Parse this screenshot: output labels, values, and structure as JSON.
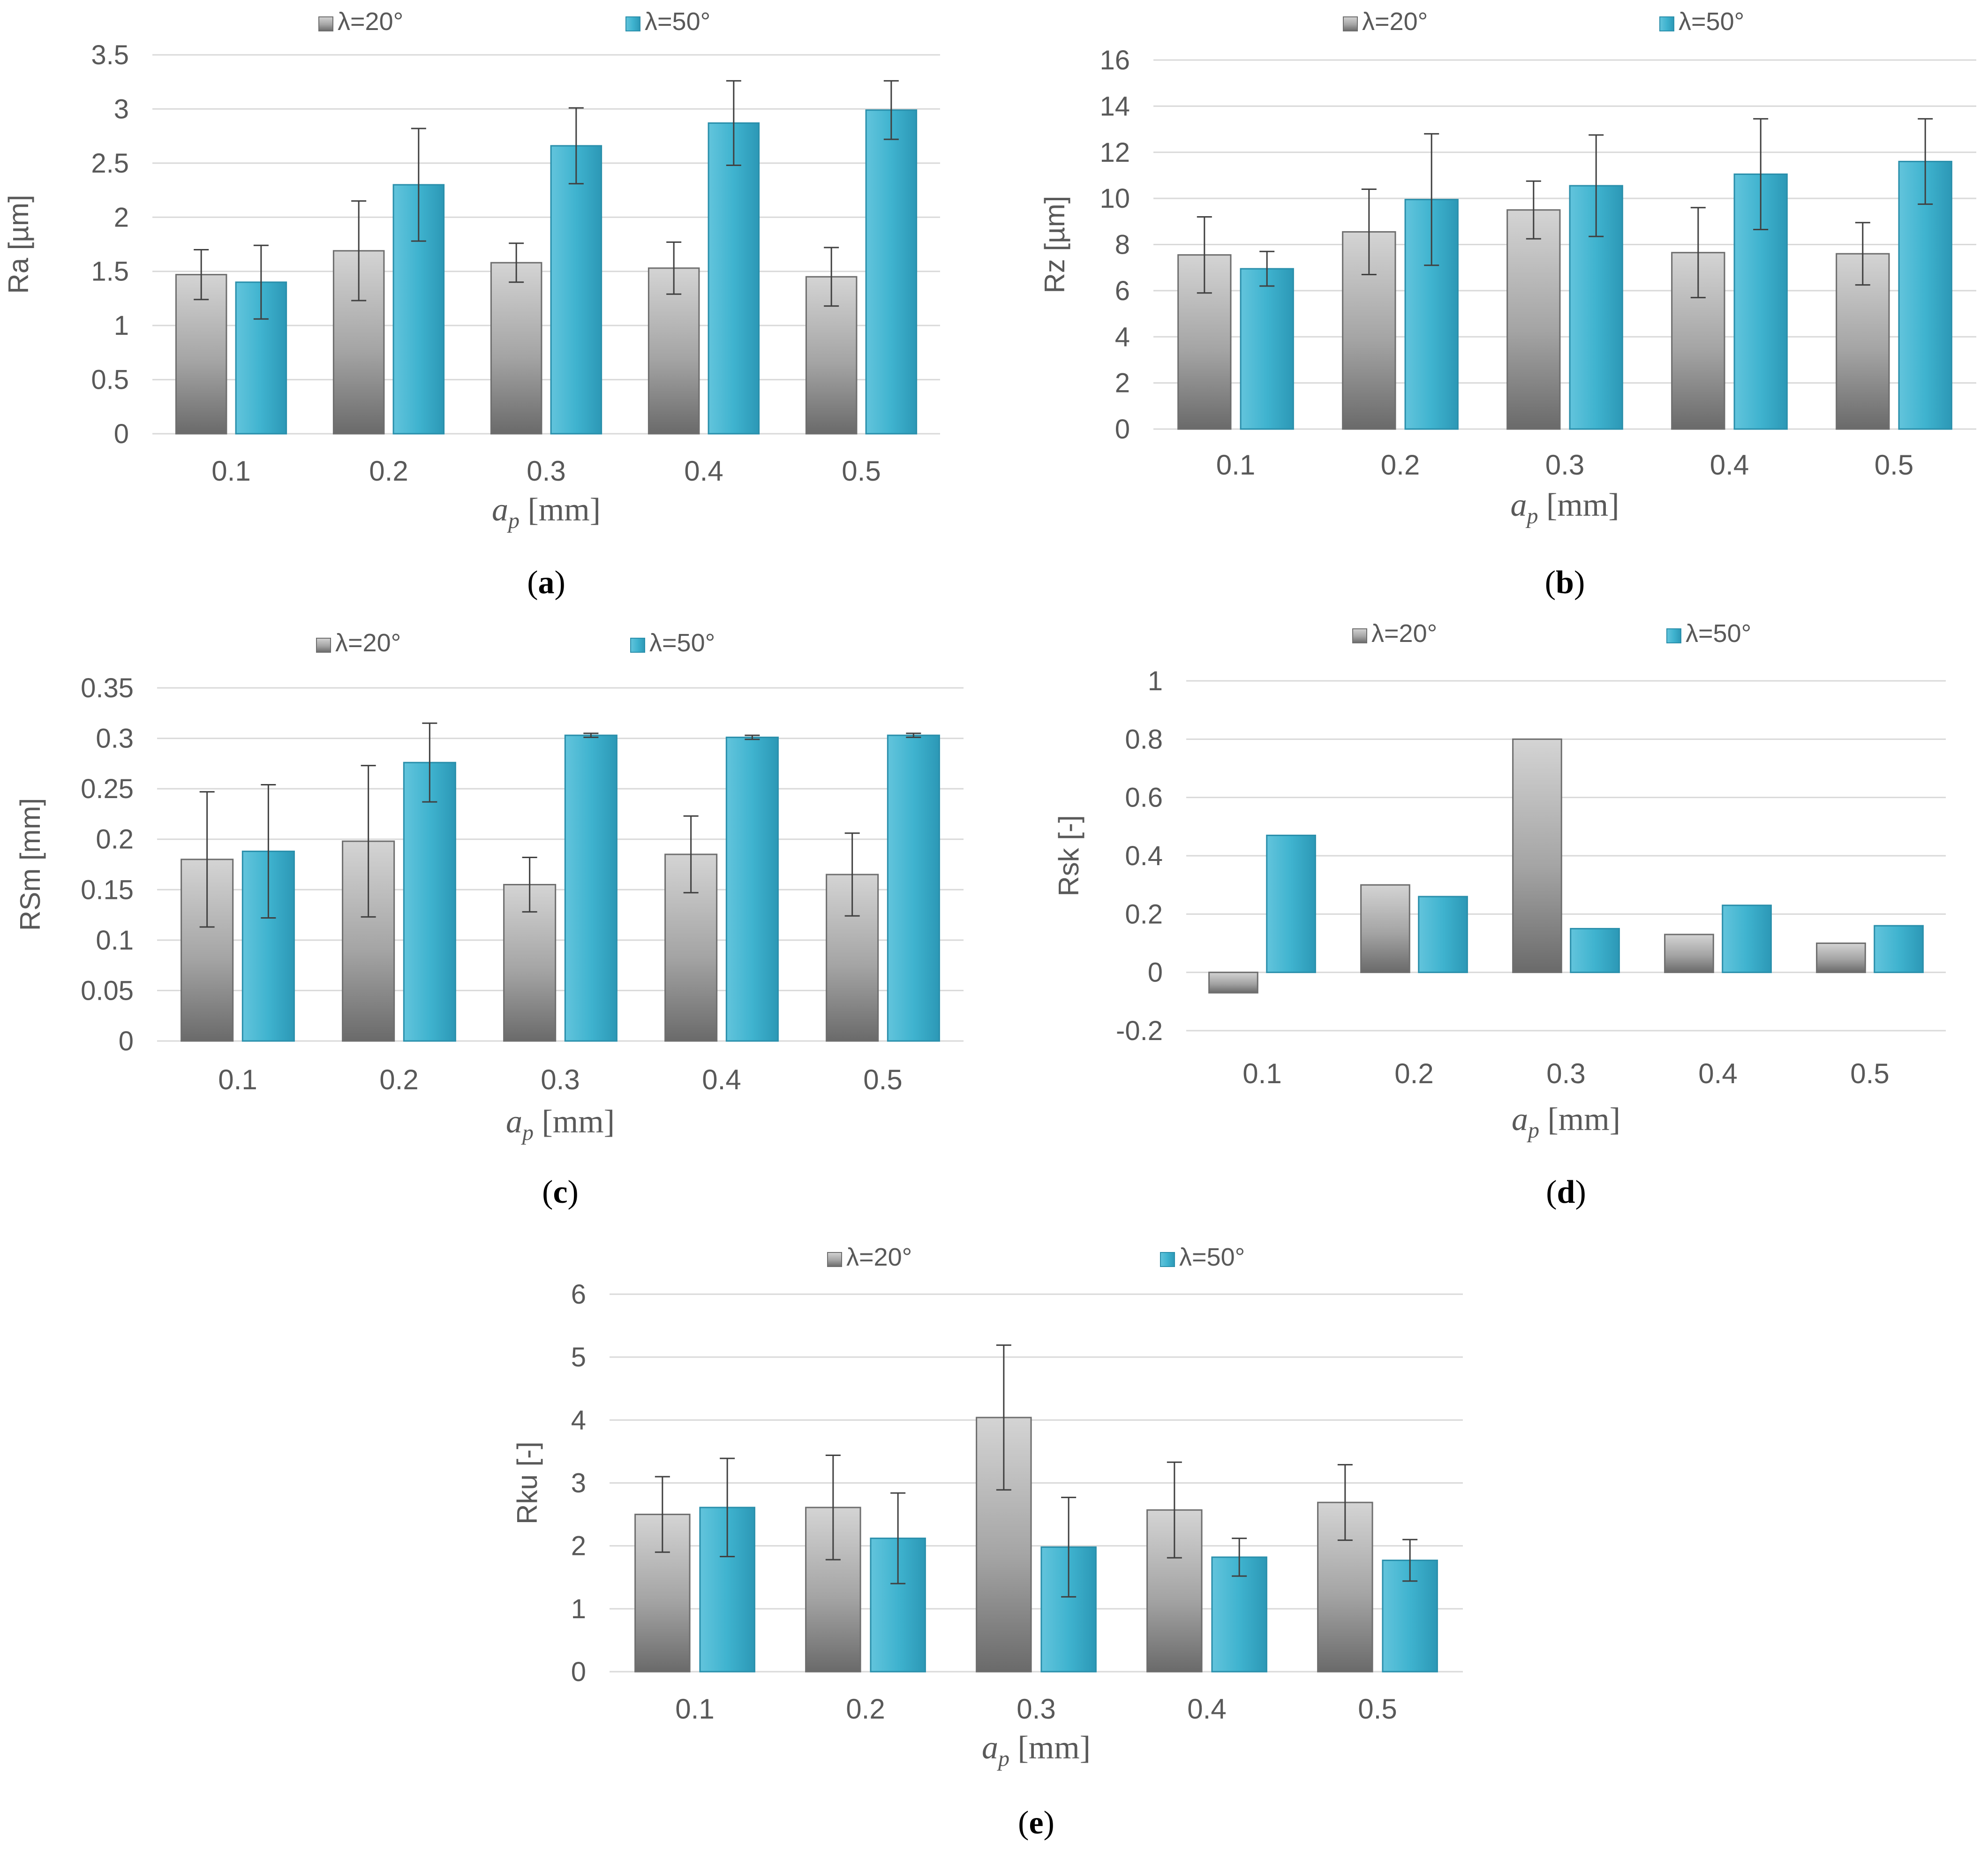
{
  "colors": {
    "series_20": "#9e9e9e",
    "series_20_dark": "#6e6e6e",
    "series_50": "#3fb3cf",
    "series_50_dark": "#2a8fab",
    "gridline": "#d9d9d9",
    "text": "#595959",
    "error_bar": "#404040"
  },
  "chart_data": [
    {
      "id": "a",
      "type": "bar",
      "caption": "a",
      "categories": [
        "0.1",
        "0.2",
        "0.3",
        "0.4",
        "0.5"
      ],
      "ylabel": "Ra [µm]",
      "xlabel_main": "a",
      "xlabel_sub": "p",
      "xlabel_unit": "[mm]",
      "ylim": [
        0,
        3.5
      ],
      "ytick_step": 0.5,
      "yticks": [
        "0",
        "0.5",
        "1",
        "1.5",
        "2",
        "2.5",
        "3",
        "3.5"
      ],
      "series": [
        {
          "name": "λ=20°",
          "values": [
            1.47,
            1.69,
            1.58,
            1.53,
            1.45
          ],
          "errors": [
            0.23,
            0.46,
            0.18,
            0.24,
            0.27
          ]
        },
        {
          "name": "λ=50°",
          "values": [
            1.4,
            2.3,
            2.66,
            2.87,
            2.99
          ],
          "errors": [
            0.34,
            0.52,
            0.35,
            0.39,
            0.27
          ]
        }
      ]
    },
    {
      "id": "b",
      "type": "bar",
      "caption": "b",
      "categories": [
        "0.1",
        "0.2",
        "0.3",
        "0.4",
        "0.5"
      ],
      "ylabel": "Rz [µm]",
      "xlabel_main": "a",
      "xlabel_sub": "p",
      "xlabel_unit": "[mm]",
      "ylim": [
        0,
        16
      ],
      "ytick_step": 2,
      "yticks": [
        "0",
        "2",
        "4",
        "6",
        "8",
        "10",
        "12",
        "14",
        "16"
      ],
      "series": [
        {
          "name": "λ=20°",
          "values": [
            7.55,
            8.55,
            9.5,
            7.65,
            7.6
          ],
          "errors": [
            1.65,
            1.85,
            1.25,
            1.95,
            1.35
          ]
        },
        {
          "name": "λ=50°",
          "values": [
            6.95,
            9.95,
            10.55,
            11.05,
            11.6
          ],
          "errors": [
            0.75,
            2.85,
            2.2,
            2.4,
            1.85
          ]
        }
      ]
    },
    {
      "id": "c",
      "type": "bar",
      "caption": "c",
      "categories": [
        "0.1",
        "0.2",
        "0.3",
        "0.4",
        "0.5"
      ],
      "ylabel": "RSm [mm]",
      "xlabel_main": "a",
      "xlabel_sub": "p",
      "xlabel_unit": "[mm]",
      "ylim": [
        0,
        0.35
      ],
      "ytick_step": 0.05,
      "yticks": [
        "0",
        "0.05",
        "0.1",
        "0.15",
        "0.2",
        "0.25",
        "0.3",
        "0.35"
      ],
      "series": [
        {
          "name": "λ=20°",
          "values": [
            0.18,
            0.198,
            0.155,
            0.185,
            0.165
          ],
          "errors": [
            0.067,
            0.075,
            0.027,
            0.038,
            0.041
          ]
        },
        {
          "name": "λ=50°",
          "values": [
            0.188,
            0.276,
            0.303,
            0.301,
            0.303
          ],
          "errors": [
            0.066,
            0.039,
            0.002,
            0.002,
            0.002
          ]
        }
      ]
    },
    {
      "id": "d",
      "type": "bar",
      "caption": "d",
      "categories": [
        "0.1",
        "0.2",
        "0.3",
        "0.4",
        "0.5"
      ],
      "ylabel": "Rsk [-]",
      "xlabel_main": "a",
      "xlabel_sub": "p",
      "xlabel_unit": "[mm]",
      "ylim": [
        -0.2,
        1
      ],
      "ytick_step": 0.2,
      "yticks": [
        "-0.2",
        "0",
        "0.2",
        "0.4",
        "0.6",
        "0.8",
        "1"
      ],
      "series": [
        {
          "name": "λ=20°",
          "values": [
            -0.07,
            0.3,
            0.8,
            0.13,
            0.1
          ]
        },
        {
          "name": "λ=50°",
          "values": [
            0.47,
            0.26,
            0.15,
            0.23,
            0.16
          ]
        }
      ]
    },
    {
      "id": "e",
      "type": "bar",
      "caption": "e",
      "categories": [
        "0.1",
        "0.2",
        "0.3",
        "0.4",
        "0.5"
      ],
      "ylabel": "Rku [-]",
      "xlabel_main": "a",
      "xlabel_sub": "p",
      "xlabel_unit": "[mm]",
      "ylim": [
        0,
        6
      ],
      "ytick_step": 1,
      "yticks": [
        "0",
        "1",
        "2",
        "3",
        "4",
        "5",
        "6"
      ],
      "series": [
        {
          "name": "λ=20°",
          "values": [
            2.5,
            2.61,
            4.04,
            2.57,
            2.69
          ],
          "errors": [
            0.6,
            0.83,
            1.15,
            0.76,
            0.6
          ]
        },
        {
          "name": "λ=50°",
          "values": [
            2.61,
            2.12,
            1.98,
            1.82,
            1.77
          ],
          "errors": [
            0.78,
            0.72,
            0.79,
            0.3,
            0.33
          ]
        }
      ]
    }
  ]
}
